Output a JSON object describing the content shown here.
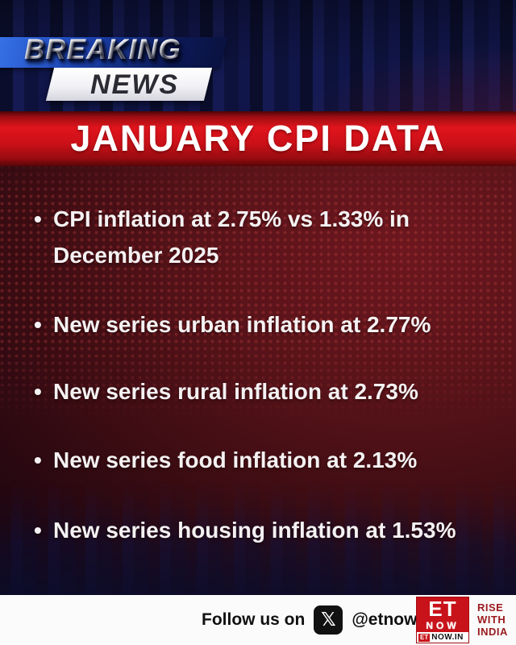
{
  "banner": {
    "word1": "BREAKING",
    "word2": "NEWS"
  },
  "headline": {
    "title": "JANUARY CPI DATA"
  },
  "bullet_marker": "•",
  "bullets": [
    "CPI inflation at 2.75% vs 1.33% in December 2025",
    "New series urban inflation at 2.77%",
    "New series rural inflation at 2.73%",
    "New series food inflation at 2.13%",
    "New series housing inflation at 1.53%"
  ],
  "footer": {
    "follow_label": "Follow us on",
    "x_icon_glyph": "𝕏",
    "handle": "@etnowlive",
    "logo": {
      "top": "ET",
      "bottom": "NOW",
      "strip_prefix": "ET",
      "strip_suffix": "NOW.IN"
    },
    "tagline": {
      "line1": "RISE",
      "line2": "WITH",
      "line3": "INDIA"
    }
  },
  "colors": {
    "headline_red": "#c8121a",
    "body_maroon": "#571319",
    "navy": "#0b0f2e",
    "banner_blue": "#1e46b8",
    "logo_red": "#c8131a",
    "tagline_red": "#9b1b1f",
    "footer_white": "#fbfbfb"
  }
}
